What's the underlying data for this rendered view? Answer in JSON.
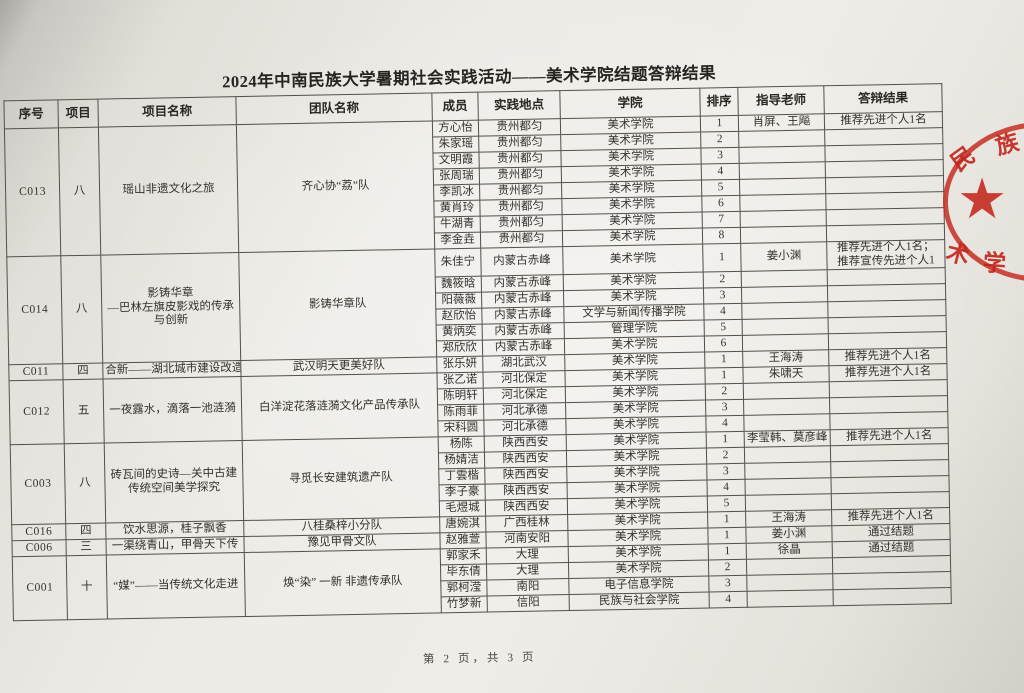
{
  "page": {
    "title": "2024年中南民族大学暑期社会实践活动——美术学院结题答辩结果",
    "footer": "第 2 页，共 3 页"
  },
  "seal": {
    "color": "#c5271b",
    "star_icon": "★",
    "chars": [
      "民",
      "族",
      "术",
      "学"
    ]
  },
  "table": {
    "headers": [
      "序号",
      "项目",
      "项目名称",
      "团队名称",
      "成员",
      "实践地点",
      "学院",
      "排序",
      "指导老师",
      "答辩结果"
    ],
    "groups": [
      {
        "id": "C013",
        "category": "八",
        "project": "瑶山非遗文化之旅",
        "team": "齐心协“荔”队",
        "members": [
          {
            "name": "方心怡",
            "place": "贵州都匀",
            "college": "美术学院",
            "rank": "1",
            "advisor": "肖屏、王飚",
            "result": "推荐先进个人1名"
          },
          {
            "name": "朱家瑶",
            "place": "贵州都匀",
            "college": "美术学院",
            "rank": "2",
            "advisor": "",
            "result": ""
          },
          {
            "name": "文明霞",
            "place": "贵州都匀",
            "college": "美术学院",
            "rank": "3",
            "advisor": "",
            "result": ""
          },
          {
            "name": "张周瑞",
            "place": "贵州都匀",
            "college": "美术学院",
            "rank": "4",
            "advisor": "",
            "result": ""
          },
          {
            "name": "李凯冰",
            "place": "贵州都匀",
            "college": "美术学院",
            "rank": "5",
            "advisor": "",
            "result": ""
          },
          {
            "name": "黄肖玲",
            "place": "贵州都匀",
            "college": "美术学院",
            "rank": "6",
            "advisor": "",
            "result": ""
          },
          {
            "name": "牛湖青",
            "place": "贵州都匀",
            "college": "美术学院",
            "rank": "7",
            "advisor": "",
            "result": ""
          },
          {
            "name": "李金垚",
            "place": "贵州都匀",
            "college": "美术学院",
            "rank": "8",
            "advisor": "",
            "result": ""
          }
        ]
      },
      {
        "id": "C014",
        "category": "八",
        "project": "影铸华章\n—巴林左旗皮影戏的传承与创新",
        "team": "影铸华章队",
        "members": [
          {
            "name": "朱佳宁",
            "place": "内蒙古赤峰",
            "college": "美术学院",
            "rank": "1",
            "advisor": "姜小渊",
            "result": "推荐先进个人1名；\n推荐宣传先进个人1"
          },
          {
            "name": "魏筱晗",
            "place": "内蒙古赤峰",
            "college": "美术学院",
            "rank": "2",
            "advisor": "",
            "result": ""
          },
          {
            "name": "阳薇薇",
            "place": "内蒙古赤峰",
            "college": "美术学院",
            "rank": "3",
            "advisor": "",
            "result": ""
          },
          {
            "name": "赵欣怡",
            "place": "内蒙古赤峰",
            "college": "文学与新闻传播学院",
            "rank": "4",
            "advisor": "",
            "result": ""
          },
          {
            "name": "黄炳奕",
            "place": "内蒙古赤峰",
            "college": "管理学院",
            "rank": "5",
            "advisor": "",
            "result": ""
          },
          {
            "name": "郑欣欣",
            "place": "内蒙古赤峰",
            "college": "美术学院",
            "rank": "6",
            "advisor": "",
            "result": ""
          }
        ]
      },
      {
        "id": "C011",
        "category": "四",
        "project": "合新——湖北城市建设改造",
        "team": "武汉明天更美好队",
        "members": [
          {
            "name": "张乐妍",
            "place": "湖北武汉",
            "college": "美术学院",
            "rank": "1",
            "advisor": "王海涛",
            "result": "推荐先进个人1名"
          }
        ]
      },
      {
        "id": "C012",
        "category": "五",
        "project": "一夜露水，滴落一池涟漪",
        "team": "白洋淀花落涟漪文化产品传承队",
        "members": [
          {
            "name": "张乙诺",
            "place": "河北保定",
            "college": "美术学院",
            "rank": "1",
            "advisor": "朱啸天",
            "result": "推荐先进个人1名"
          },
          {
            "name": "陈明轩",
            "place": "河北保定",
            "college": "美术学院",
            "rank": "2",
            "advisor": "",
            "result": ""
          },
          {
            "name": "陈雨菲",
            "place": "河北承德",
            "college": "美术学院",
            "rank": "3",
            "advisor": "",
            "result": ""
          },
          {
            "name": "宋科圆",
            "place": "河北承德",
            "college": "美术学院",
            "rank": "4",
            "advisor": "",
            "result": ""
          }
        ]
      },
      {
        "id": "C003",
        "category": "八",
        "project": "砖瓦间的史诗—关中古建\n传统空间美学探究",
        "team": "寻觅长安建筑遗产队",
        "members": [
          {
            "name": "杨陈",
            "place": "陕西西安",
            "college": "美术学院",
            "rank": "1",
            "advisor": "李莹韩、莫彦峰",
            "result": "推荐先进个人1名"
          },
          {
            "name": "杨婧洁",
            "place": "陕西西安",
            "college": "美术学院",
            "rank": "2",
            "advisor": "",
            "result": ""
          },
          {
            "name": "丁雲楷",
            "place": "陕西西安",
            "college": "美术学院",
            "rank": "3",
            "advisor": "",
            "result": ""
          },
          {
            "name": "李子豪",
            "place": "陕西西安",
            "college": "美术学院",
            "rank": "4",
            "advisor": "",
            "result": ""
          },
          {
            "name": "毛煜城",
            "place": "陕西西安",
            "college": "美术学院",
            "rank": "5",
            "advisor": "",
            "result": ""
          }
        ]
      },
      {
        "id": "C016",
        "category": "四",
        "project": "饮水思源，桂子飘香",
        "team": "八桂桑梓小分队",
        "members": [
          {
            "name": "唐婉淇",
            "place": "广西桂林",
            "college": "美术学院",
            "rank": "1",
            "advisor": "王海涛",
            "result": "推荐先进个人1名"
          }
        ]
      },
      {
        "id": "C006",
        "category": "三",
        "project": "一渠绕青山，甲骨天下传",
        "team": "豫见甲骨文队",
        "members": [
          {
            "name": "赵雅萱",
            "place": "河南安阳",
            "college": "美术学院",
            "rank": "1",
            "advisor": "姜小渊",
            "result": "通过结题"
          }
        ]
      },
      {
        "id": "C001",
        "category": "十",
        "project": "“媒”——当传统文化走进",
        "team": "焕“染” 一新 非遗传承队",
        "members": [
          {
            "name": "郭家禾",
            "place": "大理",
            "college": "美术学院",
            "rank": "1",
            "advisor": "徐晶",
            "result": "通过结题"
          },
          {
            "name": "毕东倩",
            "place": "大理",
            "college": "美术学院",
            "rank": "2",
            "advisor": "",
            "result": ""
          },
          {
            "name": "郭柯滢",
            "place": "南阳",
            "college": "电子信息学院",
            "rank": "3",
            "advisor": "",
            "result": ""
          },
          {
            "name": "竹梦新",
            "place": "信阳",
            "college": "民族与社会学院",
            "rank": "4",
            "advisor": "",
            "result": ""
          }
        ]
      }
    ]
  }
}
